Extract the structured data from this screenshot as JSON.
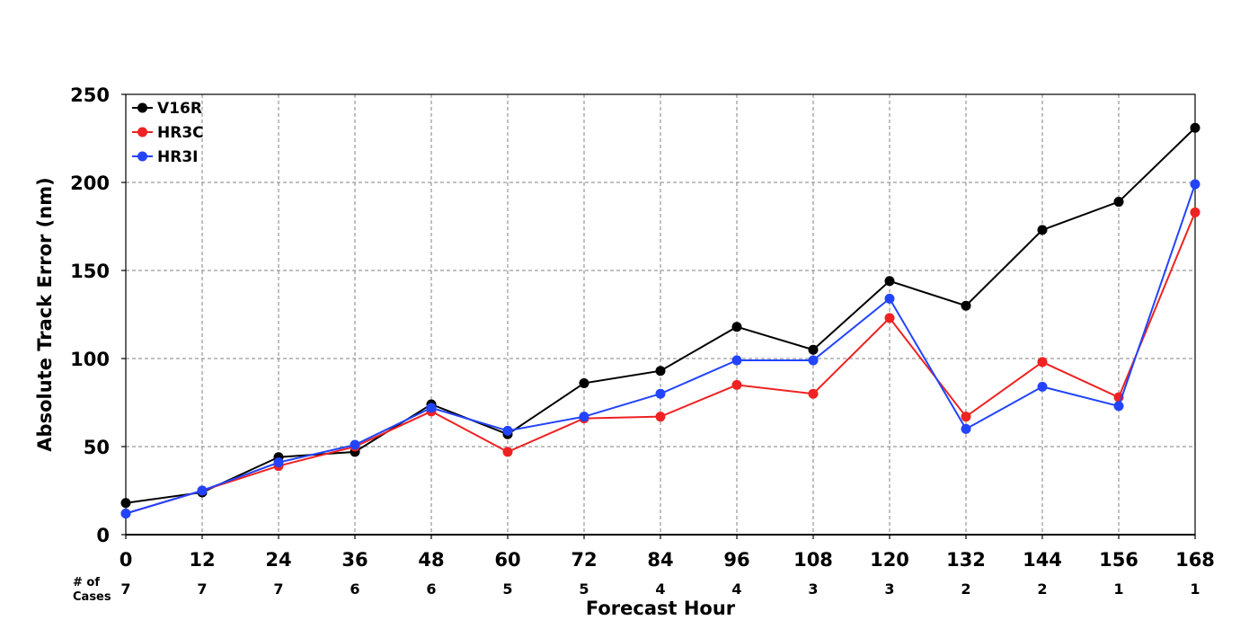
{
  "chart_data": {
    "type": "line",
    "title": "",
    "xlabel": "Forecast Hour",
    "ylabel": "Absolute Track Error (nm)",
    "x": [
      0,
      12,
      24,
      36,
      48,
      60,
      72,
      84,
      96,
      108,
      120,
      132,
      144,
      156,
      168
    ],
    "xlim": [
      0,
      168
    ],
    "ylim": [
      0,
      250
    ],
    "xticks": [
      "0",
      "12",
      "24",
      "36",
      "48",
      "60",
      "72",
      "84",
      "96",
      "108",
      "120",
      "132",
      "144",
      "156",
      "168"
    ],
    "yticks": [
      "0",
      "50",
      "100",
      "150",
      "200",
      "250"
    ],
    "grid": true,
    "legend_position": "top-left",
    "series": [
      {
        "name": "V16R",
        "color": "#000000",
        "values": [
          18,
          24,
          44,
          47,
          74,
          57,
          86,
          93,
          118,
          105,
          144,
          130,
          173,
          189,
          231
        ]
      },
      {
        "name": "HR3C",
        "color": "#ee2222",
        "values": [
          12,
          25,
          39,
          50,
          70,
          47,
          66,
          67,
          85,
          80,
          123,
          67,
          98,
          78,
          183
        ]
      },
      {
        "name": "HR3I",
        "color": "#2244ff",
        "values": [
          12,
          25,
          41,
          51,
          72,
          59,
          67,
          80,
          99,
          99,
          134,
          60,
          84,
          73,
          199
        ]
      }
    ],
    "cases_label": [
      "# of",
      "Cases"
    ],
    "cases": [
      "7",
      "7",
      "7",
      "6",
      "6",
      "5",
      "5",
      "4",
      "4",
      "3",
      "3",
      "2",
      "2",
      "1",
      "1"
    ]
  }
}
